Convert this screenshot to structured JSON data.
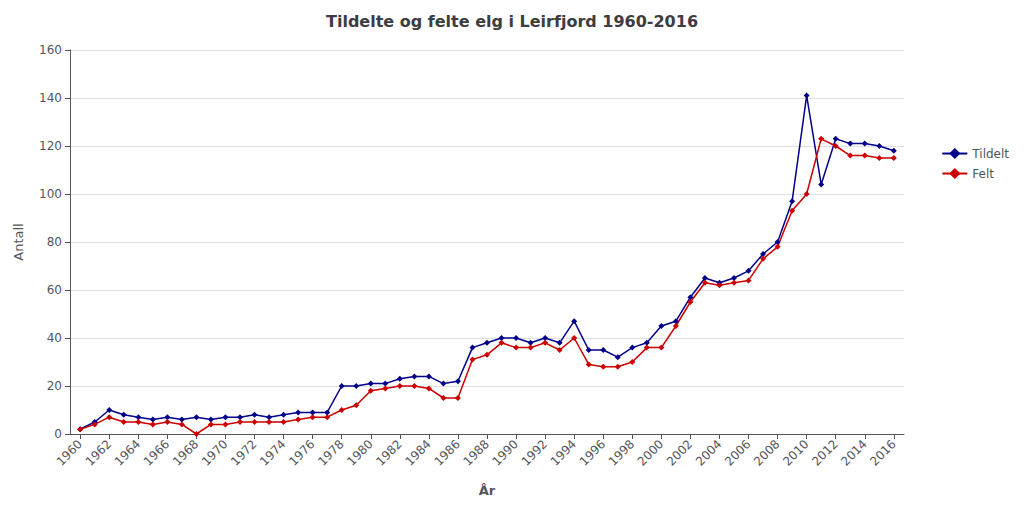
{
  "chart_data": {
    "type": "line",
    "title": "Tildelte og felte elg i Leirfjord 1960-2016",
    "xlabel": "År",
    "ylabel": "Antall",
    "x": [
      1960,
      1961,
      1962,
      1963,
      1964,
      1965,
      1966,
      1967,
      1968,
      1969,
      1970,
      1971,
      1972,
      1973,
      1974,
      1975,
      1976,
      1977,
      1978,
      1979,
      1980,
      1981,
      1982,
      1983,
      1984,
      1985,
      1986,
      1987,
      1988,
      1989,
      1990,
      1991,
      1992,
      1993,
      1994,
      1995,
      1996,
      1997,
      1998,
      1999,
      2000,
      2001,
      2002,
      2003,
      2004,
      2005,
      2006,
      2007,
      2008,
      2009,
      2010,
      2011,
      2012,
      2013,
      2014,
      2015,
      2016
    ],
    "series": [
      {
        "name": "Tildelt",
        "color": "#00008B",
        "marker": "diamond",
        "values": [
          2,
          5,
          10,
          8,
          7,
          6,
          7,
          6,
          7,
          6,
          7,
          7,
          8,
          7,
          8,
          9,
          9,
          9,
          20,
          20,
          21,
          21,
          23,
          24,
          24,
          21,
          22,
          36,
          38,
          40,
          40,
          38,
          40,
          38,
          47,
          35,
          35,
          32,
          36,
          38,
          45,
          47,
          57,
          65,
          63,
          65,
          68,
          75,
          80,
          97,
          141,
          104,
          123,
          121,
          121,
          120,
          118
        ]
      },
      {
        "name": "Felt",
        "color": "#CC0000",
        "marker": "diamond",
        "values": [
          2,
          4,
          7,
          5,
          5,
          4,
          5,
          4,
          0,
          4,
          4,
          5,
          5,
          5,
          5,
          6,
          7,
          7,
          10,
          12,
          18,
          19,
          20,
          20,
          19,
          15,
          15,
          31,
          33,
          38,
          36,
          36,
          38,
          35,
          40,
          29,
          28,
          28,
          30,
          36,
          36,
          45,
          55,
          63,
          62,
          63,
          64,
          73,
          78,
          93,
          100,
          123,
          120,
          116,
          116,
          115,
          115
        ]
      }
    ],
    "xlim": [
      1959.3,
      2016.7
    ],
    "xticks": [
      1960,
      1962,
      1964,
      1966,
      1968,
      1970,
      1972,
      1974,
      1976,
      1978,
      1980,
      1982,
      1984,
      1986,
      1988,
      1990,
      1992,
      1994,
      1996,
      1998,
      2000,
      2002,
      2004,
      2006,
      2008,
      2010,
      2012,
      2014,
      2016
    ],
    "ylim": [
      0,
      160
    ],
    "yticks": [
      0,
      20,
      40,
      60,
      80,
      100,
      120,
      140,
      160
    ],
    "grid": "y",
    "legend": "right"
  }
}
